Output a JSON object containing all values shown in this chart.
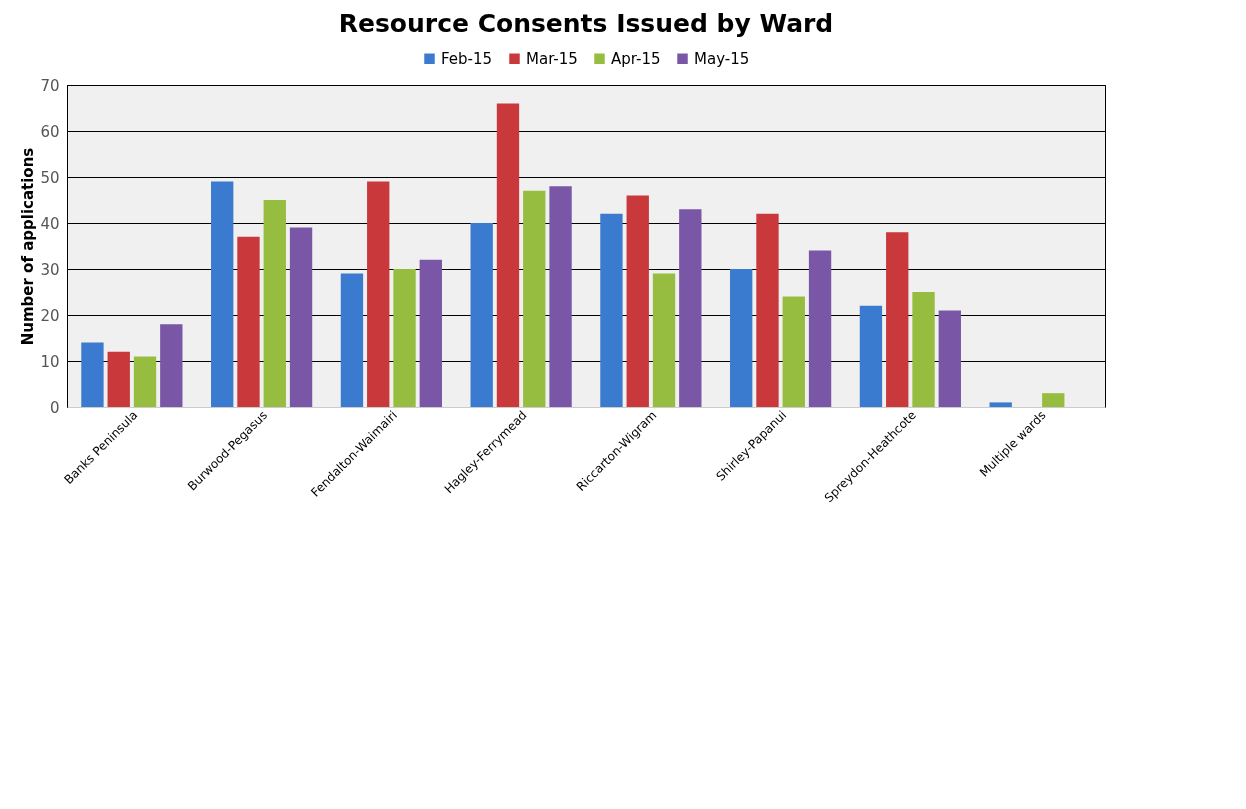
{
  "chart_data": {
    "type": "bar",
    "title": "Resource Consents Issued by Ward",
    "ylabel": "Number of applications",
    "categories": [
      "Banks Peninsula",
      "Burwood-Pegasus",
      "Fendalton-Waimairi",
      "Hagley-Ferrymead",
      "Riccarton-Wigram",
      "Shirley-Papanui",
      "Spreydon-Heathcote",
      "Multiple wards"
    ],
    "series": [
      {
        "name": "Feb-15",
        "color": "#3a7bcf",
        "values": [
          14,
          49,
          29,
          40,
          42,
          30,
          22,
          1
        ]
      },
      {
        "name": "Mar-15",
        "color": "#c9383a",
        "values": [
          12,
          37,
          49,
          66,
          46,
          42,
          38,
          null
        ]
      },
      {
        "name": "Apr-15",
        "color": "#96bd3f",
        "values": [
          11,
          45,
          30,
          47,
          29,
          24,
          25,
          3
        ]
      },
      {
        "name": "May-15",
        "color": "#7a56a6",
        "values": [
          18,
          39,
          32,
          48,
          43,
          34,
          21,
          null
        ]
      }
    ],
    "ylim": [
      0,
      70
    ],
    "yticks": [
      0,
      10,
      20,
      30,
      40,
      50,
      60,
      70
    ],
    "grid": "y",
    "legend": "top"
  }
}
